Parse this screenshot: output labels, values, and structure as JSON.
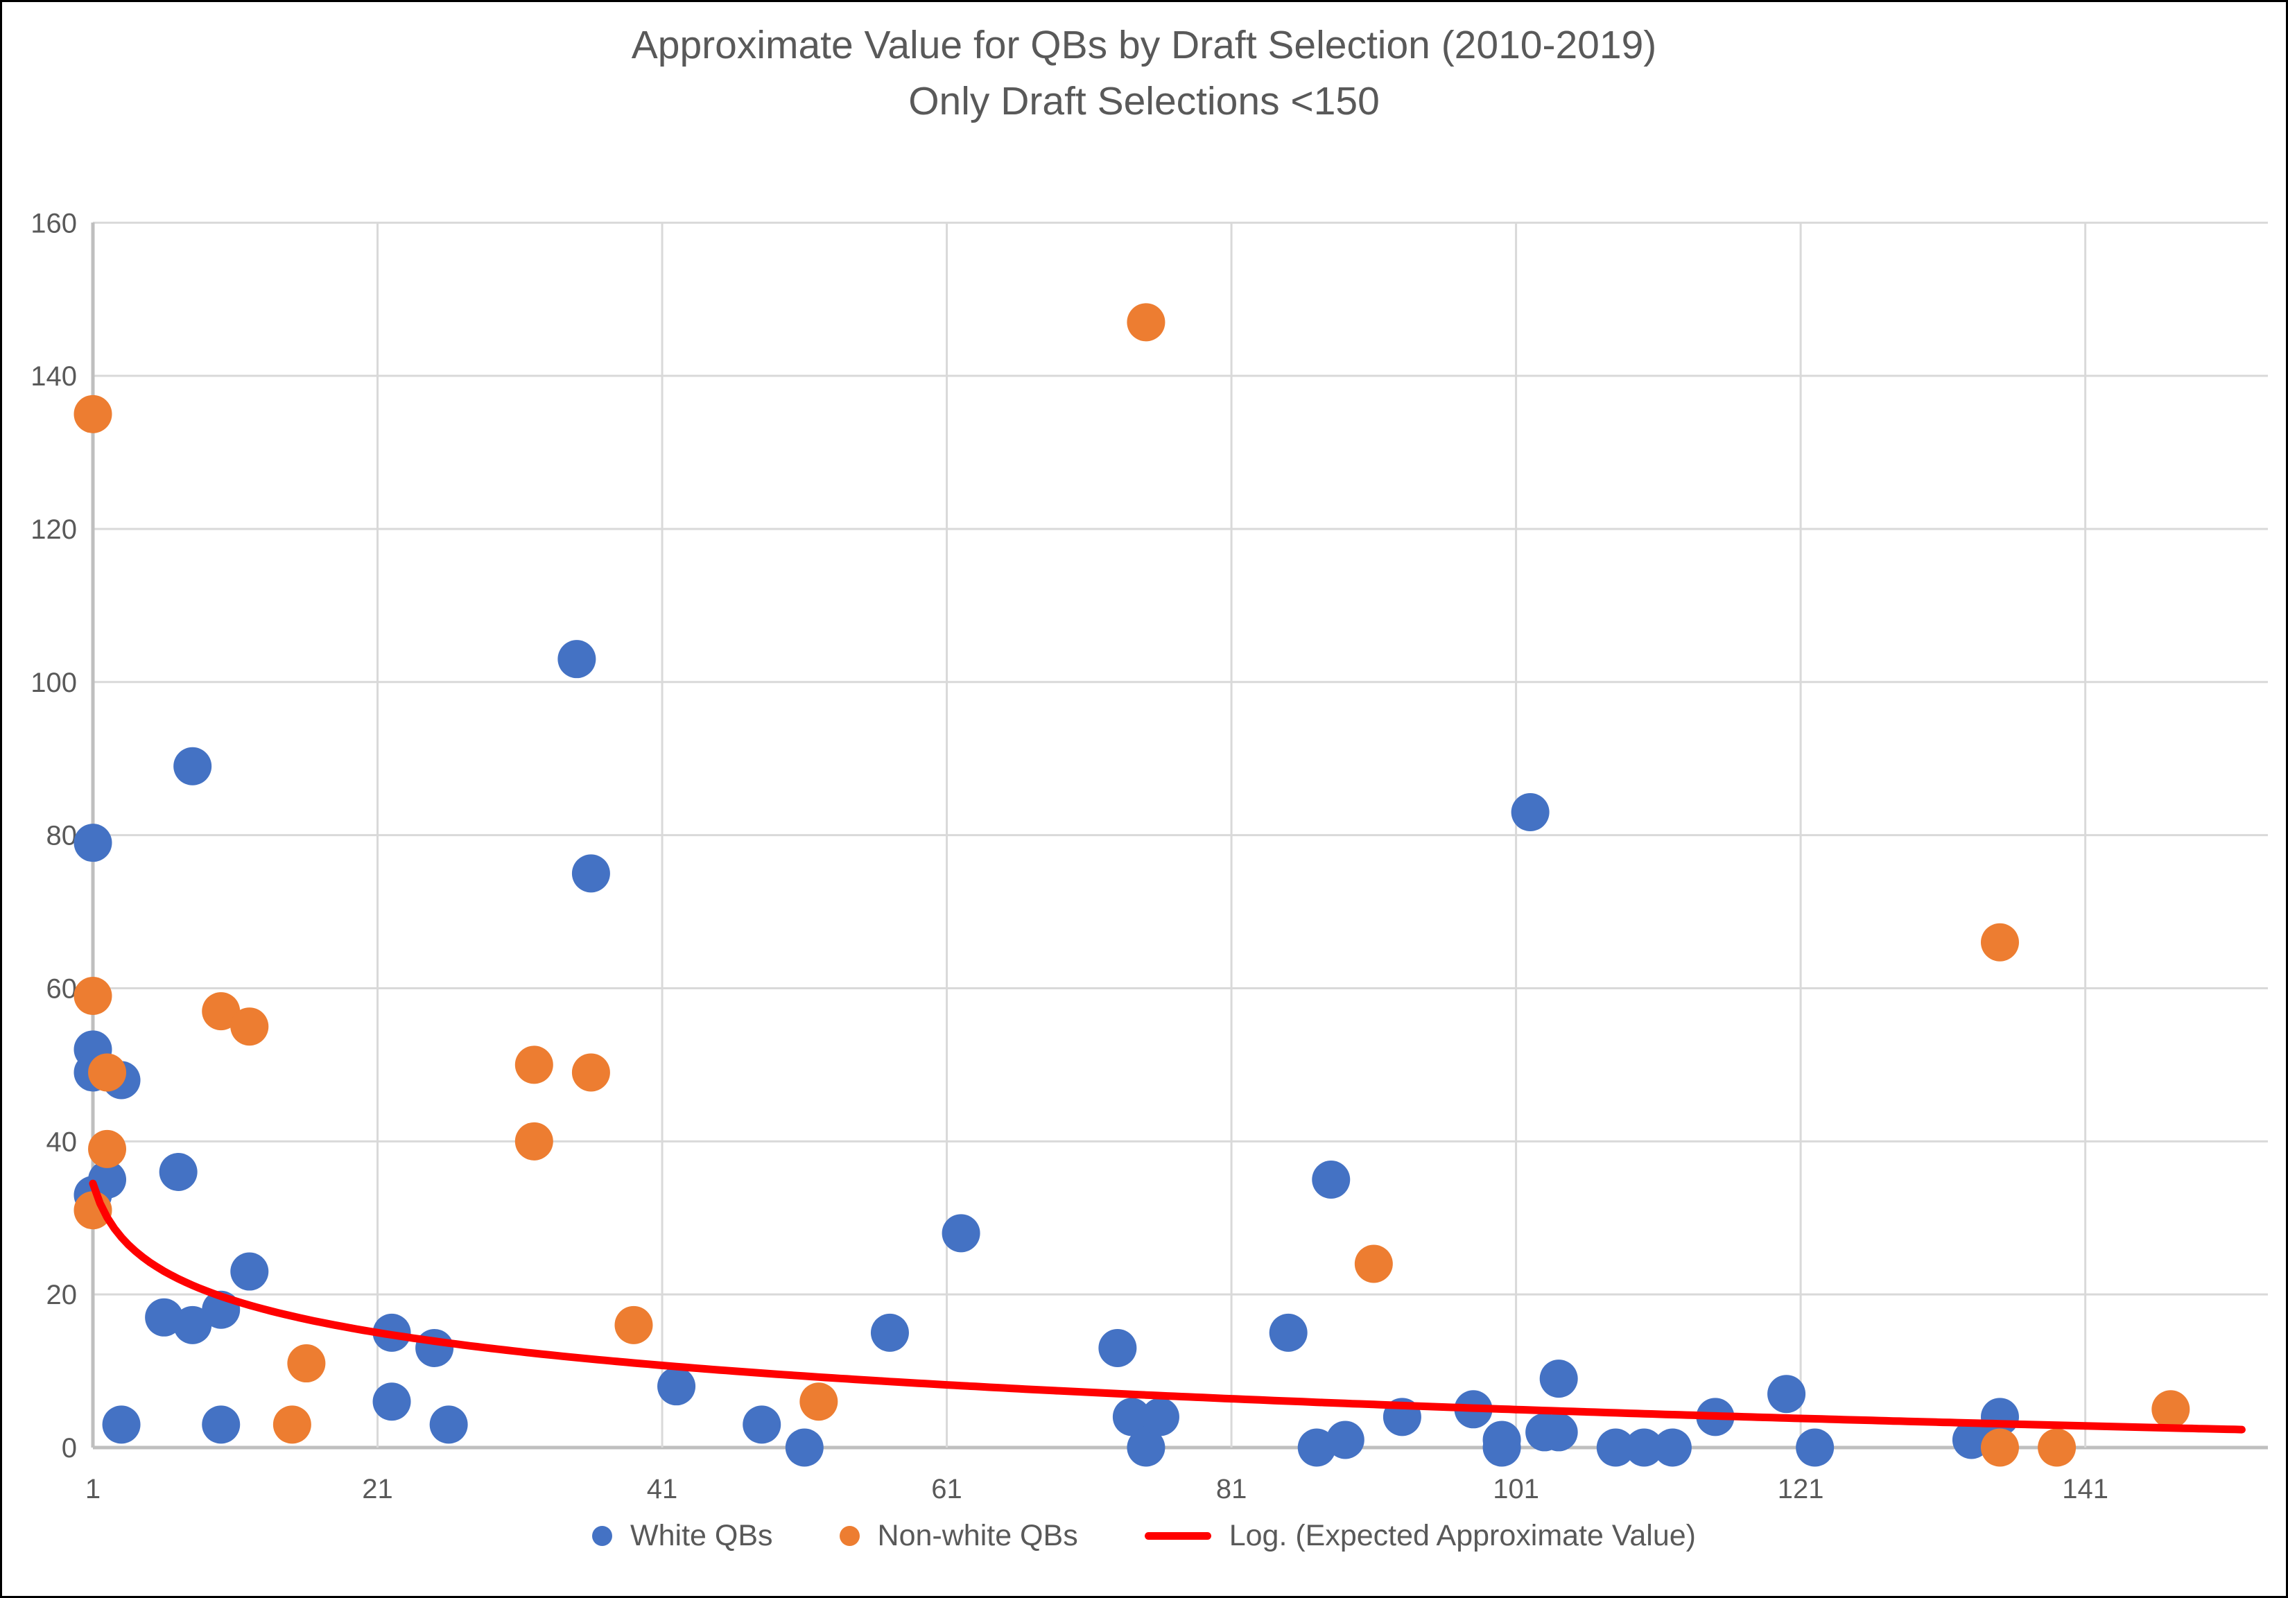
{
  "title": {
    "line1": "Approximate Value for QBs by Draft Selection (2010-2019)",
    "line2": "Only Draft Selections <150"
  },
  "colors": {
    "white_qbs": "#4472C4",
    "non_white_qbs": "#ED7D31",
    "trendline": "#FF0000",
    "gridline": "#D9D9D9",
    "axis_line": "#BFBFBF",
    "tick_label": "#595959",
    "title_text": "#595959"
  },
  "chart_data": {
    "type": "scatter",
    "title": "Approximate Value for QBs by Draft Selection (2010-2019) Only Draft Selections <150",
    "xlabel": "",
    "ylabel": "",
    "xlim": [
      1,
      153
    ],
    "ylim": [
      0,
      160
    ],
    "x_ticks": [
      1,
      21,
      41,
      61,
      81,
      101,
      121,
      141
    ],
    "y_ticks": [
      0,
      20,
      40,
      60,
      80,
      100,
      120,
      140,
      160
    ],
    "grid": true,
    "legend_position": "bottom",
    "series": [
      {
        "name": "White QBs",
        "type": "scatter",
        "color": "#4472C4",
        "points": [
          [
            1,
            79
          ],
          [
            1,
            52
          ],
          [
            1,
            49
          ],
          [
            1,
            33
          ],
          [
            2,
            35
          ],
          [
            3,
            48
          ],
          [
            3,
            3
          ],
          [
            6,
            17
          ],
          [
            7,
            36
          ],
          [
            8,
            89
          ],
          [
            8,
            16
          ],
          [
            10,
            18
          ],
          [
            10,
            3
          ],
          [
            12,
            23
          ],
          [
            22,
            15
          ],
          [
            22,
            6
          ],
          [
            25,
            13
          ],
          [
            26,
            3
          ],
          [
            35,
            103
          ],
          [
            36,
            75
          ],
          [
            42,
            8
          ],
          [
            48,
            3
          ],
          [
            51,
            0
          ],
          [
            57,
            15
          ],
          [
            62,
            28
          ],
          [
            73,
            13
          ],
          [
            74,
            4
          ],
          [
            75,
            0
          ],
          [
            76,
            4
          ],
          [
            85,
            15
          ],
          [
            87,
            0
          ],
          [
            88,
            35
          ],
          [
            89,
            1
          ],
          [
            93,
            4
          ],
          [
            98,
            5
          ],
          [
            100,
            1
          ],
          [
            100,
            0
          ],
          [
            102,
            83
          ],
          [
            103,
            2
          ],
          [
            104,
            2
          ],
          [
            104,
            9
          ],
          [
            108,
            0
          ],
          [
            110,
            0
          ],
          [
            112,
            0
          ],
          [
            115,
            4
          ],
          [
            120,
            7
          ],
          [
            122,
            0
          ],
          [
            133,
            1
          ],
          [
            135,
            4
          ]
        ]
      },
      {
        "name": "Non-white QBs",
        "type": "scatter",
        "color": "#ED7D31",
        "points": [
          [
            1,
            135
          ],
          [
            1,
            59
          ],
          [
            1,
            31
          ],
          [
            2,
            49
          ],
          [
            2,
            39
          ],
          [
            10,
            57
          ],
          [
            12,
            55
          ],
          [
            15,
            3
          ],
          [
            16,
            11
          ],
          [
            32,
            50
          ],
          [
            32,
            40
          ],
          [
            36,
            49
          ],
          [
            39,
            16
          ],
          [
            52,
            6
          ],
          [
            75,
            147
          ],
          [
            91,
            24
          ],
          [
            135,
            66
          ],
          [
            135,
            0
          ],
          [
            139,
            0
          ],
          [
            147,
            5
          ]
        ]
      },
      {
        "name": "Log. (Expected Approximate Value)",
        "type": "log_trendline",
        "color": "#FF0000",
        "equation": "y = 34.5 - 6.4*ln(x)",
        "a": 34.5,
        "b": -6.4,
        "x_range": [
          1,
          152
        ]
      }
    ]
  }
}
